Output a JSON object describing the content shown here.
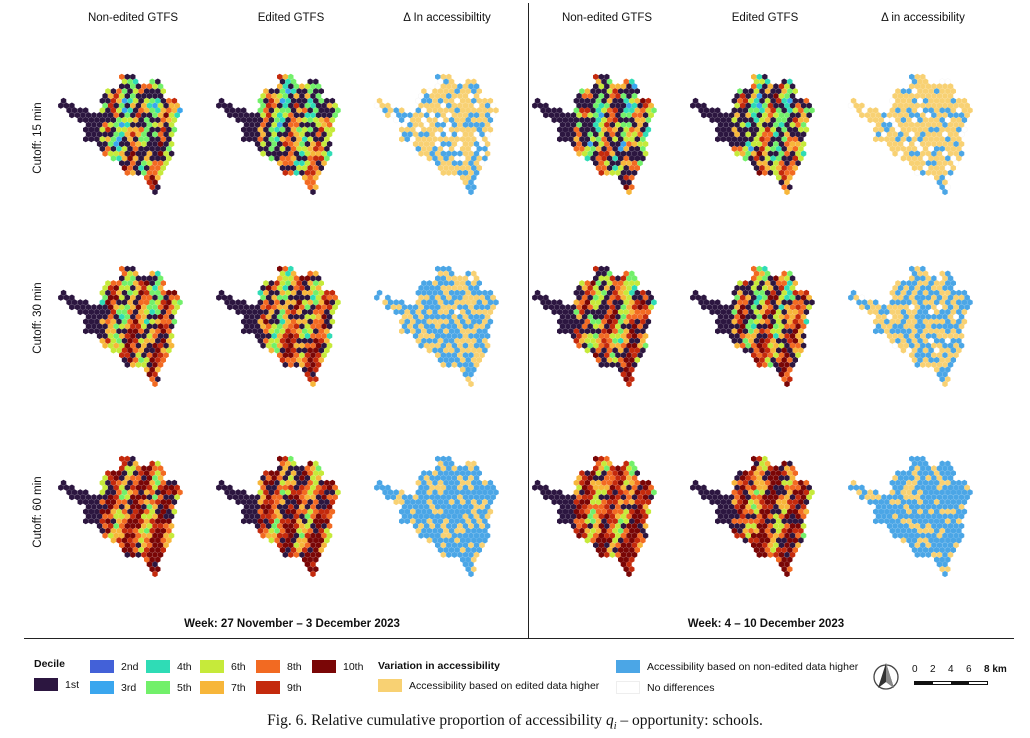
{
  "column_titles": [
    "Non-edited GTFS",
    "Edited GTFS",
    "Δ In accessibiltity",
    "Non-edited GTFS",
    "Edited GTFS",
    "Δ in accessibility"
  ],
  "row_labels": [
    "Cutoff: 15 min",
    "Cutoff: 30 min",
    "Cutoff: 60 min"
  ],
  "weeks": [
    "Week: 27 November – 3 December 2023",
    "Week: 4 – 10 December 2023"
  ],
  "legend": {
    "decile_title": "Decile",
    "deciles": [
      {
        "label": "1st",
        "color": "#2c1640"
      },
      {
        "label": "2nd",
        "color": "#4361d8"
      },
      {
        "label": "3rd",
        "color": "#3aa6ee"
      },
      {
        "label": "4th",
        "color": "#2fdcb6"
      },
      {
        "label": "5th",
        "color": "#72f06a"
      },
      {
        "label": "6th",
        "color": "#c6ea3a"
      },
      {
        "label": "7th",
        "color": "#f7b63a"
      },
      {
        "label": "8th",
        "color": "#f26a22"
      },
      {
        "label": "9th",
        "color": "#c42a0d"
      },
      {
        "label": "10th",
        "color": "#7a0606"
      }
    ],
    "variation_title": "Variation in accessibility",
    "variation_items": [
      {
        "label": "Accessibility based on edited data higher",
        "color": "#f8d173"
      },
      {
        "label": "Accessibility based on non-edited data higher",
        "color": "#4ba6e6"
      },
      {
        "label": "No differences",
        "color": "#ffffff"
      }
    ]
  },
  "scale_bar": {
    "ticks": [
      "0",
      "2",
      "4",
      "6",
      "8 km"
    ]
  },
  "caption": {
    "prefix": "Fig. 6.",
    "text": "Relative cumulative proportion of accessibility",
    "symbol": "q",
    "sub": "i",
    "suffix": "– opportunity: schools."
  }
}
